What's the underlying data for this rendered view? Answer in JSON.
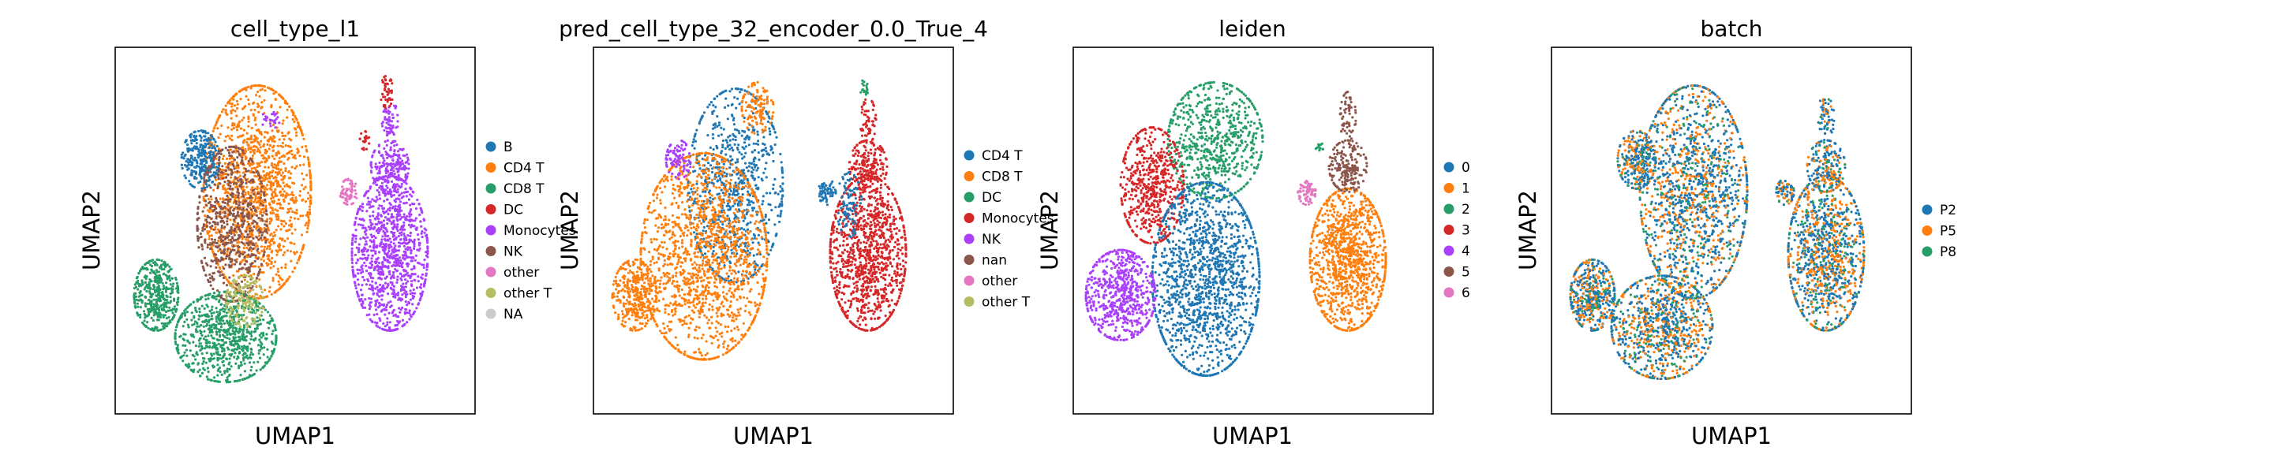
{
  "palette": {
    "blue": "#1f77b4",
    "orange": "#ff7f0e",
    "green": "#279e68",
    "red": "#d62728",
    "purple": "#aa40fc",
    "brown": "#8c564b",
    "pink": "#e377c2",
    "olive": "#b5bd61",
    "gray": "#cccccc"
  },
  "chart_data": [
    {
      "type": "scatter",
      "title": "cell_type_l1",
      "xlabel": "UMAP1",
      "ylabel": "UMAP2",
      "grid": false,
      "legend_position": "right",
      "categories": [
        "B",
        "CD4 T",
        "CD8 T",
        "DC",
        "Monocytes",
        "NK",
        "other",
        "other T",
        "NA"
      ],
      "colors": [
        "blue",
        "orange",
        "green",
        "red",
        "purple",
        "brown",
        "pink",
        "olive",
        "gray"
      ],
      "regions": [
        {
          "category": "purple",
          "cx": 0.8,
          "cy": 0.57,
          "rx": 0.12,
          "ry": 0.24,
          "points": 1100
        },
        {
          "category": "purple",
          "cx": 0.8,
          "cy": 0.3,
          "rx": 0.06,
          "ry": 0.08,
          "points": 200
        },
        {
          "category": "purple",
          "cx": 0.8,
          "cy": 0.16,
          "rx": 0.025,
          "ry": 0.07,
          "points": 60
        },
        {
          "category": "red",
          "cx": 0.79,
          "cy": 0.07,
          "rx": 0.02,
          "ry": 0.05,
          "points": 45
        },
        {
          "category": "red",
          "cx": 0.72,
          "cy": 0.22,
          "rx": 0.015,
          "ry": 0.03,
          "points": 20
        },
        {
          "category": "pink",
          "cx": 0.67,
          "cy": 0.38,
          "rx": 0.028,
          "ry": 0.04,
          "points": 70
        },
        {
          "category": "orange",
          "cx": 0.38,
          "cy": 0.38,
          "rx": 0.17,
          "ry": 0.33,
          "points": 1500
        },
        {
          "category": "blue",
          "cx": 0.2,
          "cy": 0.28,
          "rx": 0.06,
          "ry": 0.09,
          "points": 300
        },
        {
          "category": "brown",
          "cx": 0.3,
          "cy": 0.48,
          "rx": 0.11,
          "ry": 0.24,
          "points": 700
        },
        {
          "category": "green",
          "cx": 0.06,
          "cy": 0.7,
          "rx": 0.07,
          "ry": 0.11,
          "points": 450
        },
        {
          "category": "green",
          "cx": 0.28,
          "cy": 0.83,
          "rx": 0.16,
          "ry": 0.14,
          "points": 800
        },
        {
          "category": "olive",
          "cx": 0.34,
          "cy": 0.72,
          "rx": 0.06,
          "ry": 0.08,
          "points": 150
        },
        {
          "category": "purple",
          "cx": 0.42,
          "cy": 0.16,
          "rx": 0.03,
          "ry": 0.03,
          "points": 25
        }
      ]
    },
    {
      "type": "scatter",
      "title": "pred_cell_type_32_encoder_0.0_True_4",
      "xlabel": "UMAP1",
      "ylabel": "UMAP2",
      "grid": false,
      "legend_position": "right",
      "categories": [
        "CD4 T",
        "CD8 T",
        "DC",
        "Monocytes",
        "NK",
        "nan",
        "other",
        "other T"
      ],
      "colors": [
        "blue",
        "orange",
        "green",
        "red",
        "purple",
        "brown",
        "pink",
        "olive"
      ],
      "regions": [
        {
          "category": "red",
          "cx": 0.8,
          "cy": 0.57,
          "rx": 0.12,
          "ry": 0.24,
          "points": 1100
        },
        {
          "category": "red",
          "cx": 0.8,
          "cy": 0.3,
          "rx": 0.06,
          "ry": 0.08,
          "points": 200
        },
        {
          "category": "red",
          "cx": 0.8,
          "cy": 0.16,
          "rx": 0.025,
          "ry": 0.07,
          "points": 60
        },
        {
          "category": "green",
          "cx": 0.79,
          "cy": 0.06,
          "rx": 0.015,
          "ry": 0.03,
          "points": 20
        },
        {
          "category": "blue",
          "cx": 0.67,
          "cy": 0.38,
          "rx": 0.028,
          "ry": 0.04,
          "points": 60
        },
        {
          "category": "blue",
          "cx": 0.74,
          "cy": 0.42,
          "rx": 0.04,
          "ry": 0.1,
          "points": 100
        },
        {
          "category": "blue",
          "cx": 0.38,
          "cy": 0.36,
          "rx": 0.15,
          "ry": 0.3,
          "points": 800
        },
        {
          "category": "orange",
          "cx": 0.28,
          "cy": 0.58,
          "rx": 0.2,
          "ry": 0.32,
          "points": 1600
        },
        {
          "category": "orange",
          "cx": 0.06,
          "cy": 0.7,
          "rx": 0.07,
          "ry": 0.11,
          "points": 350
        },
        {
          "category": "purple",
          "cx": 0.2,
          "cy": 0.28,
          "rx": 0.04,
          "ry": 0.06,
          "points": 90
        },
        {
          "category": "orange",
          "cx": 0.45,
          "cy": 0.12,
          "rx": 0.05,
          "ry": 0.08,
          "points": 120
        }
      ]
    },
    {
      "type": "scatter",
      "title": "leiden",
      "xlabel": "UMAP1",
      "ylabel": "UMAP2",
      "grid": false,
      "legend_position": "right",
      "categories": [
        "0",
        "1",
        "2",
        "3",
        "4",
        "5",
        "6"
      ],
      "colors": [
        "blue",
        "orange",
        "green",
        "red",
        "purple",
        "brown",
        "pink"
      ],
      "regions": [
        {
          "category": "orange",
          "cx": 0.8,
          "cy": 0.59,
          "rx": 0.12,
          "ry": 0.22,
          "points": 1100
        },
        {
          "category": "brown",
          "cx": 0.8,
          "cy": 0.3,
          "rx": 0.06,
          "ry": 0.08,
          "points": 200
        },
        {
          "category": "brown",
          "cx": 0.8,
          "cy": 0.15,
          "rx": 0.025,
          "ry": 0.08,
          "points": 60
        },
        {
          "category": "green",
          "cx": 0.71,
          "cy": 0.24,
          "rx": 0.012,
          "ry": 0.02,
          "points": 12
        },
        {
          "category": "pink",
          "cx": 0.67,
          "cy": 0.38,
          "rx": 0.028,
          "ry": 0.04,
          "points": 70
        },
        {
          "category": "green",
          "cx": 0.38,
          "cy": 0.22,
          "rx": 0.15,
          "ry": 0.18,
          "points": 700
        },
        {
          "category": "red",
          "cx": 0.18,
          "cy": 0.36,
          "rx": 0.1,
          "ry": 0.18,
          "points": 600
        },
        {
          "category": "blue",
          "cx": 0.35,
          "cy": 0.65,
          "rx": 0.17,
          "ry": 0.3,
          "points": 1500
        },
        {
          "category": "purple",
          "cx": 0.08,
          "cy": 0.7,
          "rx": 0.11,
          "ry": 0.14,
          "points": 650
        }
      ]
    },
    {
      "type": "scatter",
      "title": "batch",
      "xlabel": "UMAP1",
      "ylabel": "UMAP2",
      "grid": false,
      "legend_position": "right",
      "categories": [
        "P2",
        "P5",
        "P8"
      ],
      "colors": [
        "blue",
        "orange",
        "green"
      ],
      "regions": [
        {
          "category": "mixed",
          "cx": 0.8,
          "cy": 0.57,
          "rx": 0.12,
          "ry": 0.24,
          "points": 1100
        },
        {
          "category": "mixed",
          "cx": 0.8,
          "cy": 0.3,
          "rx": 0.06,
          "ry": 0.08,
          "points": 200
        },
        {
          "category": "mixed",
          "cx": 0.8,
          "cy": 0.15,
          "rx": 0.025,
          "ry": 0.08,
          "points": 60
        },
        {
          "category": "mixed",
          "cx": 0.67,
          "cy": 0.38,
          "rx": 0.028,
          "ry": 0.04,
          "points": 70
        },
        {
          "category": "mixed",
          "cx": 0.38,
          "cy": 0.38,
          "rx": 0.17,
          "ry": 0.33,
          "points": 1500
        },
        {
          "category": "mixed",
          "cx": 0.2,
          "cy": 0.28,
          "rx": 0.06,
          "ry": 0.09,
          "points": 300
        },
        {
          "category": "mixed",
          "cx": 0.06,
          "cy": 0.7,
          "rx": 0.07,
          "ry": 0.11,
          "points": 450
        },
        {
          "category": "mixed",
          "cx": 0.28,
          "cy": 0.8,
          "rx": 0.16,
          "ry": 0.16,
          "points": 900
        }
      ]
    }
  ]
}
